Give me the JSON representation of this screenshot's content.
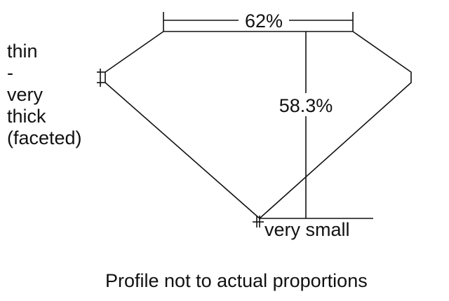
{
  "diagram": {
    "table_percentage": "62%",
    "depth_percentage": "58.3%",
    "girdle_label": [
      "thin",
      "-",
      "very",
      "thick",
      "(faceted)"
    ],
    "culet_label": "very small",
    "caption": "Profile not to actual proportions",
    "line_color": "#111111"
  }
}
